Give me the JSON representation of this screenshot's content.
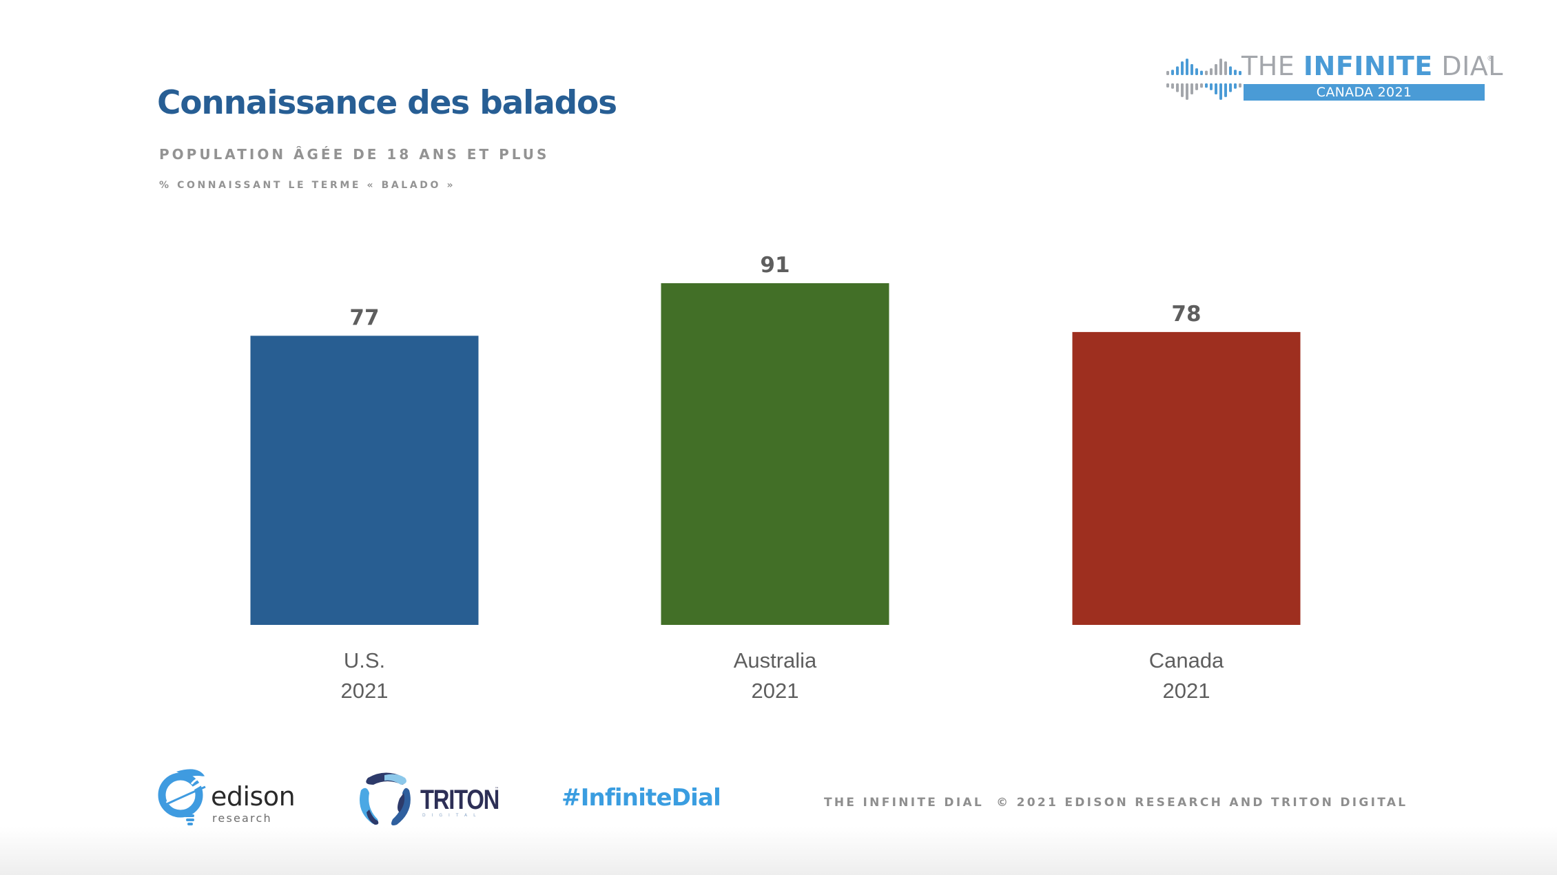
{
  "header": {
    "title": "Connaissance des balados",
    "subtitle": "POPULATION ÂGÉE DE 18 ANS ET PLUS",
    "measure": "% CONNAISSANT LE TERME « BALADO »"
  },
  "brand": {
    "icon": "infinity-bars-icon",
    "word1": "THE ",
    "word2": "INFINITE",
    "word3": " DIAL",
    "registered": "®",
    "edition": "CANADA 2021",
    "colors": {
      "blue": "#4a9bd6",
      "gray": "#a3a6ab"
    }
  },
  "chart_data": {
    "type": "bar",
    "title": "Connaissance des balados",
    "subtitle": "POPULATION ÂGÉE DE 18 ANS ET PLUS",
    "ylabel": "% CONNAISSANT LE TERME « BALADO »",
    "xlabel": "",
    "categories": [
      "U.S. 2021",
      "Australia 2021",
      "Canada 2021"
    ],
    "category_lines": [
      [
        "U.S.",
        "2021"
      ],
      [
        "Australia",
        "2021"
      ],
      [
        "Canada",
        "2021"
      ]
    ],
    "values": [
      77,
      91,
      78
    ],
    "value_labels": [
      "77",
      "91",
      "78"
    ],
    "colors": [
      "#285e92",
      "#426f27",
      "#9e2f1f"
    ],
    "ylim": [
      0,
      100
    ],
    "grid": false,
    "legend": "none",
    "axis_visible": false
  },
  "footer": {
    "edison": {
      "word": "edison",
      "sub": "research",
      "icon": "edison-lightbulb-icon"
    },
    "triton": {
      "word": "TRITON",
      "tm": "™",
      "sub": "DIGITAL",
      "icon": "triton-logo-icon"
    },
    "hashtag": "#InfiniteDial",
    "credit_left": "THE INFINITE DIAL",
    "credit_right": "© 2021 EDISON RESEARCH AND TRITON DIGITAL"
  }
}
